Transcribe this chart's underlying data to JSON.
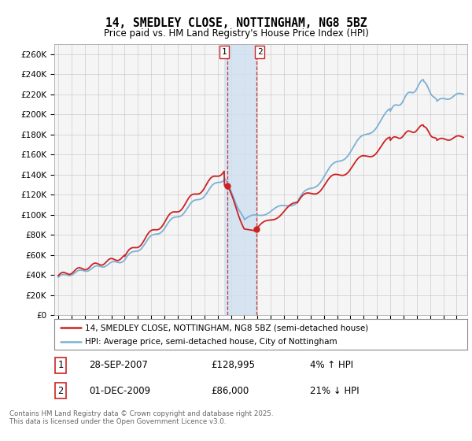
{
  "title": "14, SMEDLEY CLOSE, NOTTINGHAM, NG8 5BZ",
  "subtitle": "Price paid vs. HM Land Registry's House Price Index (HPI)",
  "hpi_color": "#7db0d5",
  "price_color": "#cc2222",
  "highlight_color_fill": "#cfe0f0",
  "highlight_border_color": "#cc2222",
  "legend_property": "14, SMEDLEY CLOSE, NOTTINGHAM, NG8 5BZ (semi-detached house)",
  "legend_hpi": "HPI: Average price, semi-detached house, City of Nottingham",
  "footer": "Contains HM Land Registry data © Crown copyright and database right 2025.\nThis data is licensed under the Open Government Licence v3.0.",
  "ylim": [
    0,
    270000
  ],
  "yticks": [
    0,
    20000,
    40000,
    60000,
    80000,
    100000,
    120000,
    140000,
    160000,
    180000,
    200000,
    220000,
    240000,
    260000
  ],
  "transaction1_x": 2007.75,
  "transaction2_x": 2009.92,
  "transaction1_y": 128995,
  "transaction2_y": 86000,
  "highlight_x1": 2007.5,
  "highlight_x2": 2010.0,
  "xmin": 1994.7,
  "xmax": 2025.8,
  "background_color": "#ffffff",
  "plot_bg_color": "#f5f5f5",
  "grid_color": "#cccccc"
}
